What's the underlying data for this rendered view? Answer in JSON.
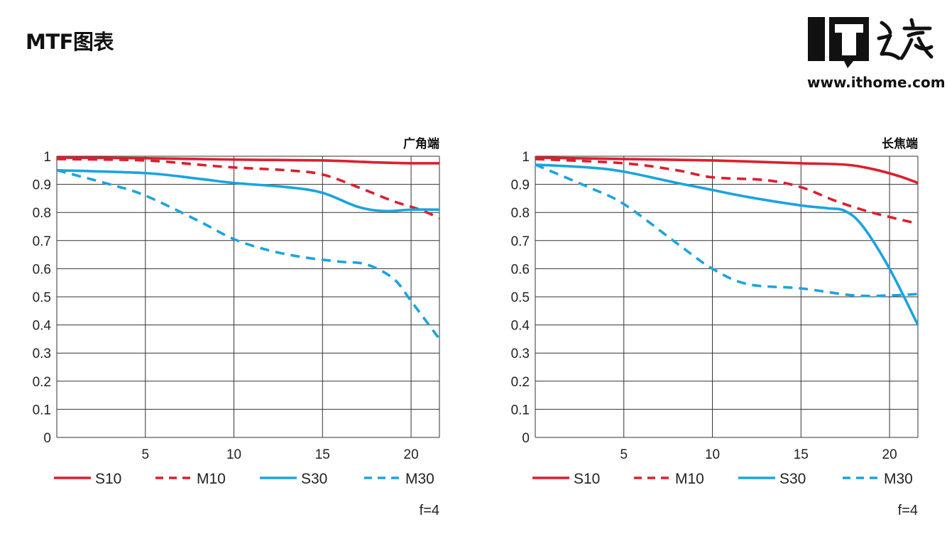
{
  "page": {
    "title": "MTF图表",
    "logo_text": "IT之家",
    "logo_url": "www.ithome.com"
  },
  "colors": {
    "red": "#dc1f2e",
    "blue": "#1ba3e0",
    "grid": "#333333"
  },
  "chart_data": [
    {
      "type": "line",
      "title": "广角端",
      "note": "f=4",
      "xlim": [
        0,
        21.6
      ],
      "ylim": [
        0,
        1
      ],
      "x_ticks": [
        5,
        10,
        15,
        20
      ],
      "y_ticks": [
        0,
        0.1,
        0.2,
        0.3,
        0.4,
        0.5,
        0.6,
        0.7,
        0.8,
        0.9,
        1
      ],
      "y_tick_labels": [
        "0",
        "0.1",
        "0.2",
        "0.3",
        "0.4",
        "0.5",
        "0.6",
        "0.7",
        "0.8",
        "0.9",
        "1"
      ],
      "x_tick_labels": [
        "5",
        "10",
        "15",
        "20"
      ],
      "series": [
        {
          "name": "S10",
          "color": "red",
          "dashed": false,
          "x": [
            0,
            5,
            10,
            15,
            18,
            20,
            21.6
          ],
          "y": [
            0.995,
            0.993,
            0.988,
            0.985,
            0.978,
            0.975,
            0.975
          ]
        },
        {
          "name": "M10",
          "color": "red",
          "dashed": true,
          "x": [
            0,
            5,
            8,
            10,
            13,
            15,
            17,
            19,
            20.5,
            21.6
          ],
          "y": [
            0.99,
            0.985,
            0.97,
            0.96,
            0.95,
            0.935,
            0.89,
            0.84,
            0.81,
            0.78
          ]
        },
        {
          "name": "S30",
          "color": "blue",
          "dashed": false,
          "x": [
            0,
            5,
            8,
            10,
            13,
            15,
            17,
            18.5,
            20,
            21.6
          ],
          "y": [
            0.95,
            0.94,
            0.92,
            0.905,
            0.89,
            0.87,
            0.82,
            0.805,
            0.81,
            0.81
          ]
        },
        {
          "name": "M30",
          "color": "blue",
          "dashed": true,
          "x": [
            0,
            3,
            5,
            8,
            10,
            12,
            14,
            16,
            17.5,
            19,
            20,
            21.6
          ],
          "y": [
            0.95,
            0.9,
            0.86,
            0.77,
            0.705,
            0.665,
            0.64,
            0.625,
            0.615,
            0.565,
            0.485,
            0.35
          ]
        }
      ],
      "legend": [
        "S10",
        "M10",
        "S30",
        "M30"
      ]
    },
    {
      "type": "line",
      "title": "长焦端",
      "note": "f=4",
      "xlim": [
        0,
        21.6
      ],
      "ylim": [
        0,
        1
      ],
      "x_ticks": [
        5,
        10,
        15,
        20
      ],
      "y_ticks": [
        0,
        0.1,
        0.2,
        0.3,
        0.4,
        0.5,
        0.6,
        0.7,
        0.8,
        0.9,
        1
      ],
      "y_tick_labels": [
        "0",
        "0.1",
        "0.2",
        "0.3",
        "0.4",
        "0.5",
        "0.6",
        "0.7",
        "0.8",
        "0.9",
        "1"
      ],
      "x_tick_labels": [
        "5",
        "10",
        "15",
        "20"
      ],
      "series": [
        {
          "name": "S10",
          "color": "red",
          "dashed": false,
          "x": [
            0,
            5,
            10,
            15,
            17.5,
            19,
            20.5,
            21.6
          ],
          "y": [
            0.995,
            0.99,
            0.985,
            0.975,
            0.97,
            0.955,
            0.93,
            0.905
          ]
        },
        {
          "name": "M10",
          "color": "red",
          "dashed": true,
          "x": [
            0,
            5,
            8,
            10,
            13,
            15,
            17,
            19,
            21.6
          ],
          "y": [
            0.99,
            0.975,
            0.95,
            0.925,
            0.915,
            0.89,
            0.84,
            0.8,
            0.76
          ]
        },
        {
          "name": "S30",
          "color": "blue",
          "dashed": false,
          "x": [
            0,
            3,
            5,
            8,
            10,
            12,
            15,
            16.5,
            17.5,
            18.5,
            20,
            21.6
          ],
          "y": [
            0.97,
            0.96,
            0.945,
            0.905,
            0.88,
            0.855,
            0.825,
            0.815,
            0.805,
            0.75,
            0.6,
            0.4
          ]
        },
        {
          "name": "M30",
          "color": "blue",
          "dashed": true,
          "x": [
            0,
            3,
            5,
            8,
            10,
            12,
            15,
            18,
            20,
            21.6
          ],
          "y": [
            0.97,
            0.89,
            0.83,
            0.69,
            0.6,
            0.545,
            0.53,
            0.505,
            0.505,
            0.51
          ]
        }
      ],
      "legend": [
        "S10",
        "M10",
        "S30",
        "M30"
      ]
    }
  ]
}
